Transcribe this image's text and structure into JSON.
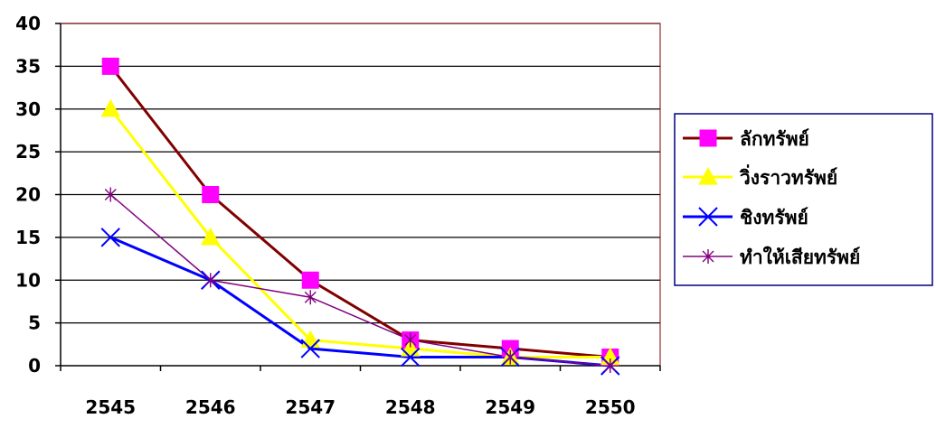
{
  "chart_data": {
    "type": "line",
    "title": "",
    "xlabel": "",
    "ylabel": "",
    "categories": [
      "2545",
      "2546",
      "2547",
      "2548",
      "2549",
      "2550"
    ],
    "ylim": [
      0,
      40
    ],
    "yticks": [
      0,
      5,
      10,
      15,
      20,
      25,
      30,
      35,
      40
    ],
    "grid": true,
    "legend_position": "right",
    "series": [
      {
        "name": "ลักทรัพย์",
        "values": [
          35,
          20,
          10,
          3,
          2,
          1
        ],
        "color": "#800000",
        "marker": "square",
        "marker_color": "#ff00ff"
      },
      {
        "name": "วิ่งราวทรัพย์",
        "values": [
          30,
          15,
          3,
          2,
          1,
          1
        ],
        "color": "#ffff00",
        "marker": "triangle",
        "marker_color": "#ffff00"
      },
      {
        "name": "ชิงทรัพย์",
        "values": [
          15,
          10,
          2,
          1,
          1,
          0
        ],
        "color": "#0000ff",
        "marker": "x",
        "marker_color": "#0000ff"
      },
      {
        "name": "ทำให้เสียทรัพย์",
        "values": [
          20,
          10,
          8,
          3,
          1,
          0
        ],
        "color": "#800080",
        "marker": "star",
        "marker_color": "#800080"
      }
    ]
  }
}
